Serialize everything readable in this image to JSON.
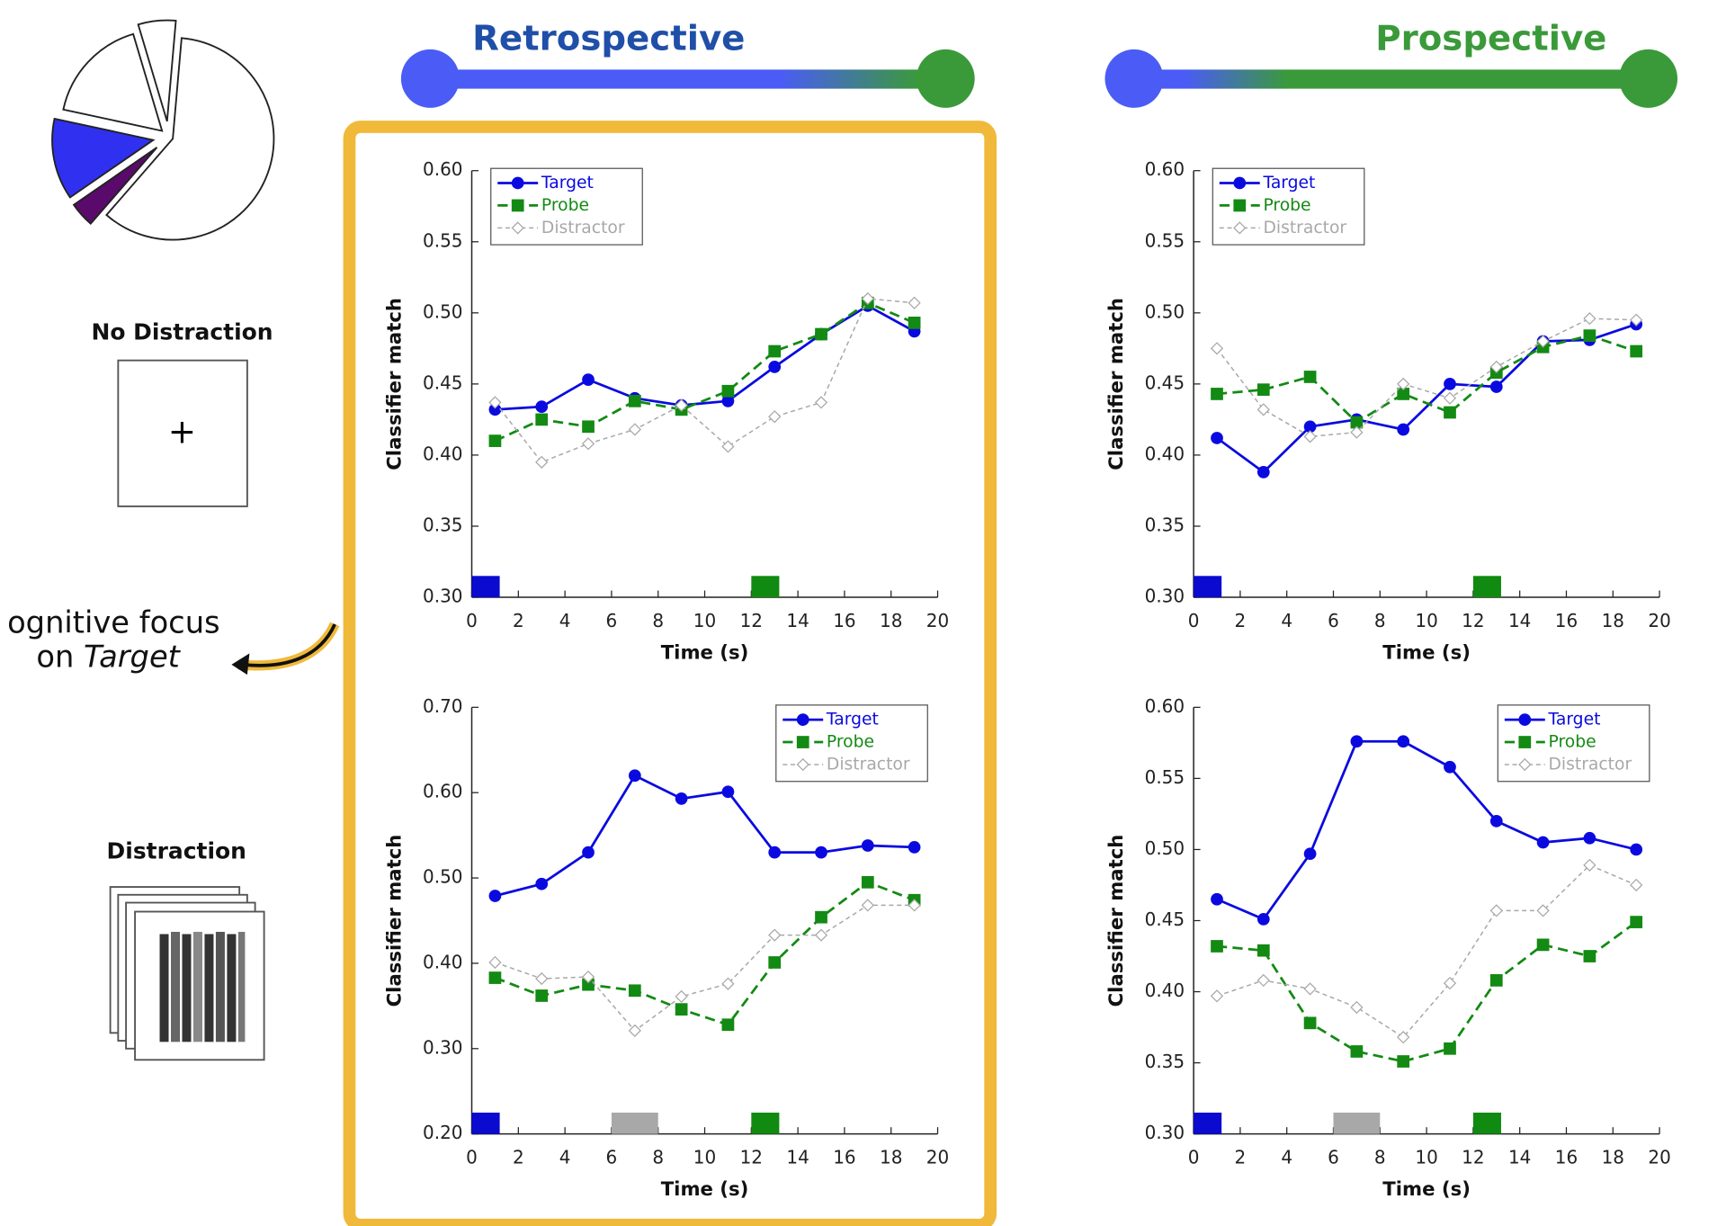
{
  "header": {
    "left": "Retrospective",
    "right": "Prospective"
  },
  "left": {
    "no_distraction": "No Distraction",
    "fixation": "+",
    "distraction": "Distraction",
    "focus_line1": "ognitive focus",
    "focus_line2_prefix": "on",
    "focus_line2_emph": "Target"
  },
  "chart_data": [
    {
      "type": "pie",
      "values": [
        60,
        4,
        13,
        17,
        6
      ],
      "colors": [
        "#ffffff",
        "#5a0a6a",
        "#3030f0",
        "#ffffff",
        "#ffffff"
      ]
    },
    {
      "type": "line",
      "x": [
        1,
        3,
        5,
        7,
        9,
        11,
        13,
        15,
        17,
        19
      ],
      "xlim": [
        0,
        20
      ],
      "xticks": [
        0,
        2,
        4,
        6,
        8,
        10,
        12,
        14,
        16,
        18,
        20
      ],
      "ylim": [
        0.3,
        0.6
      ],
      "yticks": [
        {
          "value": 0.3,
          "label": "0.30"
        },
        {
          "value": 0.35,
          "label": "0.35"
        },
        {
          "value": 0.4,
          "label": "0.40"
        },
        {
          "value": 0.45,
          "label": "0.45"
        },
        {
          "value": 0.5,
          "label": "0.50"
        },
        {
          "value": 0.55,
          "label": "0.55"
        },
        {
          "value": 0.6,
          "label": "0.60"
        }
      ],
      "xlabel": "Time (s)",
      "ylabel": "Classifier match",
      "legend": "upper left",
      "events": [
        {
          "start": 0,
          "end": 1.2,
          "color": "#0a0ad0"
        },
        {
          "start": 12,
          "end": 13.2,
          "color": "#108a10"
        }
      ],
      "series": [
        {
          "name": "Target",
          "color": "#0a0ae0",
          "line_style": "solid",
          "marker": "circle",
          "values": [
            0.432,
            0.434,
            0.453,
            0.44,
            0.435,
            0.438,
            0.462,
            0.485,
            0.505,
            0.487
          ]
        },
        {
          "name": "Probe",
          "color": "#138a13",
          "line_style": "dashed",
          "marker": "square",
          "values": [
            0.41,
            0.425,
            0.42,
            0.438,
            0.432,
            0.445,
            0.473,
            0.485,
            0.507,
            0.493
          ]
        },
        {
          "name": "Distractor",
          "color": "#a8a8a8",
          "line_style": "dotted",
          "marker": "diamond",
          "values": [
            0.437,
            0.395,
            0.408,
            0.418,
            0.435,
            0.406,
            0.427,
            0.437,
            0.51,
            0.507
          ]
        }
      ]
    },
    {
      "type": "line",
      "x": [
        1,
        3,
        5,
        7,
        9,
        11,
        13,
        15,
        17,
        19
      ],
      "xlim": [
        0,
        20
      ],
      "xticks": [
        0,
        2,
        4,
        6,
        8,
        10,
        12,
        14,
        16,
        18,
        20
      ],
      "ylim": [
        0.3,
        0.6
      ],
      "yticks": [
        {
          "value": 0.3,
          "label": "0.30"
        },
        {
          "value": 0.35,
          "label": "0.35"
        },
        {
          "value": 0.4,
          "label": "0.40"
        },
        {
          "value": 0.45,
          "label": "0.45"
        },
        {
          "value": 0.5,
          "label": "0.50"
        },
        {
          "value": 0.55,
          "label": "0.55"
        },
        {
          "value": 0.6,
          "label": "0.60"
        }
      ],
      "xlabel": "Time (s)",
      "ylabel": "Classifier match",
      "legend": "upper left",
      "events": [
        {
          "start": 0,
          "end": 1.2,
          "color": "#0a0ad0"
        },
        {
          "start": 12,
          "end": 13.2,
          "color": "#108a10"
        }
      ],
      "series": [
        {
          "name": "Target",
          "color": "#0a0ae0",
          "line_style": "solid",
          "marker": "circle",
          "values": [
            0.412,
            0.388,
            0.42,
            0.425,
            0.418,
            0.45,
            0.448,
            0.48,
            0.481,
            0.492
          ]
        },
        {
          "name": "Probe",
          "color": "#138a13",
          "line_style": "dashed",
          "marker": "square",
          "values": [
            0.443,
            0.446,
            0.455,
            0.423,
            0.443,
            0.43,
            0.458,
            0.476,
            0.484,
            0.473
          ]
        },
        {
          "name": "Distractor",
          "color": "#a8a8a8",
          "line_style": "dotted",
          "marker": "diamond",
          "values": [
            0.475,
            0.432,
            0.413,
            0.416,
            0.45,
            0.44,
            0.462,
            0.48,
            0.496,
            0.495
          ]
        }
      ]
    },
    {
      "type": "line",
      "x": [
        1,
        3,
        5,
        7,
        9,
        11,
        13,
        15,
        17,
        19
      ],
      "xlim": [
        0,
        20
      ],
      "xticks": [
        0,
        2,
        4,
        6,
        8,
        10,
        12,
        14,
        16,
        18,
        20
      ],
      "ylim": [
        0.2,
        0.7
      ],
      "yticks": [
        {
          "value": 0.2,
          "label": "0.20"
        },
        {
          "value": 0.3,
          "label": "0.30"
        },
        {
          "value": 0.4,
          "label": "0.40"
        },
        {
          "value": 0.5,
          "label": "0.50"
        },
        {
          "value": 0.6,
          "label": "0.60"
        },
        {
          "value": 0.7,
          "label": "0.70"
        }
      ],
      "xlabel": "Time (s)",
      "ylabel": "Classifier match",
      "legend": "upper right",
      "events": [
        {
          "start": 0,
          "end": 1.2,
          "color": "#0a0ad0"
        },
        {
          "start": 6,
          "end": 8,
          "color": "#a8a8a8"
        },
        {
          "start": 12,
          "end": 13.2,
          "color": "#108a10"
        }
      ],
      "series": [
        {
          "name": "Target",
          "color": "#0a0ae0",
          "line_style": "solid",
          "marker": "circle",
          "values": [
            0.479,
            0.493,
            0.53,
            0.62,
            0.593,
            0.601,
            0.53,
            0.53,
            0.538,
            0.536
          ]
        },
        {
          "name": "Probe",
          "color": "#138a13",
          "line_style": "dashed",
          "marker": "square",
          "values": [
            0.383,
            0.362,
            0.375,
            0.368,
            0.346,
            0.328,
            0.401,
            0.454,
            0.495,
            0.474
          ]
        },
        {
          "name": "Distractor",
          "color": "#a8a8a8",
          "line_style": "dotted",
          "marker": "diamond",
          "values": [
            0.401,
            0.382,
            0.384,
            0.321,
            0.361,
            0.376,
            0.433,
            0.433,
            0.468,
            0.468
          ]
        }
      ]
    },
    {
      "type": "line",
      "x": [
        1,
        3,
        5,
        7,
        9,
        11,
        13,
        15,
        17,
        19
      ],
      "xlim": [
        0,
        20
      ],
      "xticks": [
        0,
        2,
        4,
        6,
        8,
        10,
        12,
        14,
        16,
        18,
        20
      ],
      "ylim": [
        0.3,
        0.6
      ],
      "yticks": [
        {
          "value": 0.3,
          "label": "0.30"
        },
        {
          "value": 0.35,
          "label": "0.35"
        },
        {
          "value": 0.4,
          "label": "0.40"
        },
        {
          "value": 0.45,
          "label": "0.45"
        },
        {
          "value": 0.5,
          "label": "0.50"
        },
        {
          "value": 0.55,
          "label": "0.55"
        },
        {
          "value": 0.6,
          "label": "0.60"
        }
      ],
      "xlabel": "Time (s)",
      "ylabel": "Classifier match",
      "legend": "upper right",
      "events": [
        {
          "start": 0,
          "end": 1.2,
          "color": "#0a0ad0"
        },
        {
          "start": 6,
          "end": 8,
          "color": "#a8a8a8"
        },
        {
          "start": 12,
          "end": 13.2,
          "color": "#108a10"
        }
      ],
      "series": [
        {
          "name": "Target",
          "color": "#0a0ae0",
          "line_style": "solid",
          "marker": "circle",
          "values": [
            0.465,
            0.451,
            0.497,
            0.576,
            0.576,
            0.558,
            0.52,
            0.505,
            0.508,
            0.5
          ]
        },
        {
          "name": "Probe",
          "color": "#138a13",
          "line_style": "dashed",
          "marker": "square",
          "values": [
            0.432,
            0.429,
            0.378,
            0.358,
            0.351,
            0.36,
            0.408,
            0.433,
            0.425,
            0.449
          ]
        },
        {
          "name": "Distractor",
          "color": "#a8a8a8",
          "line_style": "dotted",
          "marker": "diamond",
          "values": [
            0.397,
            0.408,
            0.402,
            0.389,
            0.368,
            0.406,
            0.457,
            0.457,
            0.489,
            0.475
          ]
        }
      ]
    }
  ]
}
